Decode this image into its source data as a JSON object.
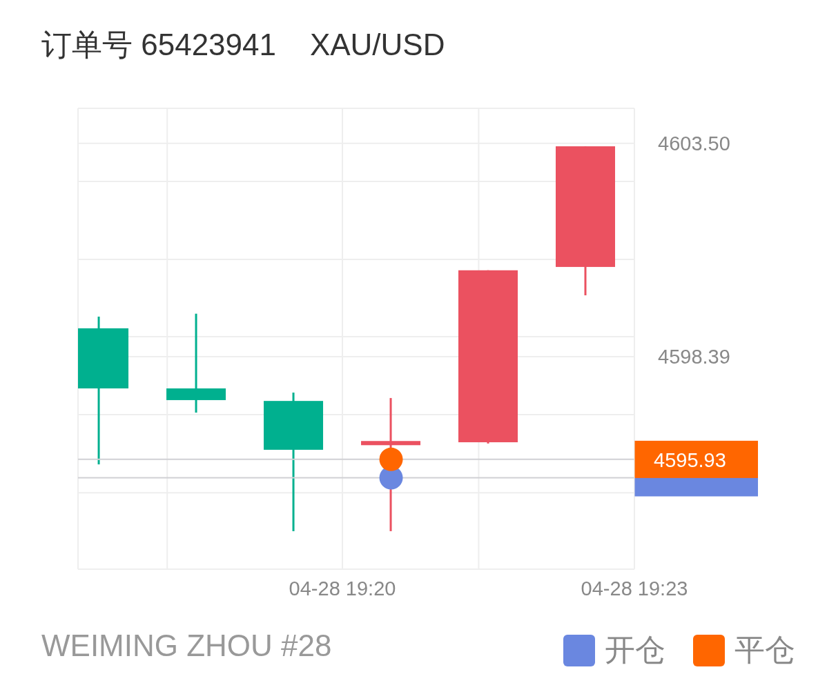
{
  "chart_data": {
    "type": "candlestick",
    "title": "订单号 65423941    XAU/USD",
    "x": [
      "--04-28T19:17:30",
      "--04-28T19:18:30",
      "--04-28T19:19:30",
      "--04-28T19:20:30",
      "--04-28T19:21:30",
      "--04-28T19:22:30"
    ],
    "ohlc": [
      [
        4599.07,
        4599.35,
        4595.81,
        4597.63
      ],
      [
        4597.63,
        4599.42,
        4597.05,
        4597.35
      ],
      [
        4597.33,
        4597.53,
        4594.21,
        4596.16
      ],
      [
        4596.27,
        4597.4,
        4594.21,
        4596.37
      ],
      [
        4596.34,
        4600.46,
        4596.31,
        4600.46
      ],
      [
        4600.54,
        4603.43,
        4599.86,
        4603.43
      ]
    ],
    "colors": [
      "#00b08f",
      "#00b08f",
      "#00b08f",
      "#eb5160",
      "#eb5160",
      "#eb5160"
    ],
    "series": [
      {
        "name": "开仓",
        "type": "scatter",
        "color": "#6a87e0",
        "x": [
          "--04-28T19:20:30"
        ],
        "values": [
          4595.49
        ]
      },
      {
        "name": "平仓",
        "type": "scatter",
        "color": "#ff6600",
        "x": [
          "--04-28T19:20:30"
        ],
        "values": [
          4595.93
        ]
      }
    ],
    "ref_lines": [
      {
        "axis": "y",
        "value": 4595.49,
        "color": "#d0d0d4"
      },
      {
        "axis": "y",
        "value": 4595.93,
        "label": "4595.93",
        "color": "#d0d0d4"
      }
    ],
    "xlim": [
      "--04-28T19:17:17",
      "--04-28T19:23"
    ],
    "xticks": [
      {
        "value": "--04-28T19:18:12",
        "label": null
      },
      {
        "value": "--04-28T19:20",
        "label": "04-28 19:20"
      },
      {
        "value": "--04-28T19:21:24",
        "label": null
      },
      {
        "value": "--04-28T19:23",
        "label": "04-28 19:23"
      }
    ],
    "ylim": [
      4593.3,
      4604.34
    ],
    "yticks": [
      {
        "value": 4595.13,
        "label": null
      },
      {
        "value": 4597.0,
        "label": null
      },
      {
        "value": 4598.39,
        "label": "4598.39"
      },
      {
        "value": 4598.87,
        "label": null
      },
      {
        "value": 4600.72,
        "label": null
      },
      {
        "value": 4602.59,
        "label": null
      },
      {
        "value": 4603.5,
        "label": "4603.50"
      }
    ],
    "grid": true,
    "marker": "circle",
    "legend": "bottom right",
    "annotations": [
      "WEIMING ZHOU #28"
    ]
  }
}
